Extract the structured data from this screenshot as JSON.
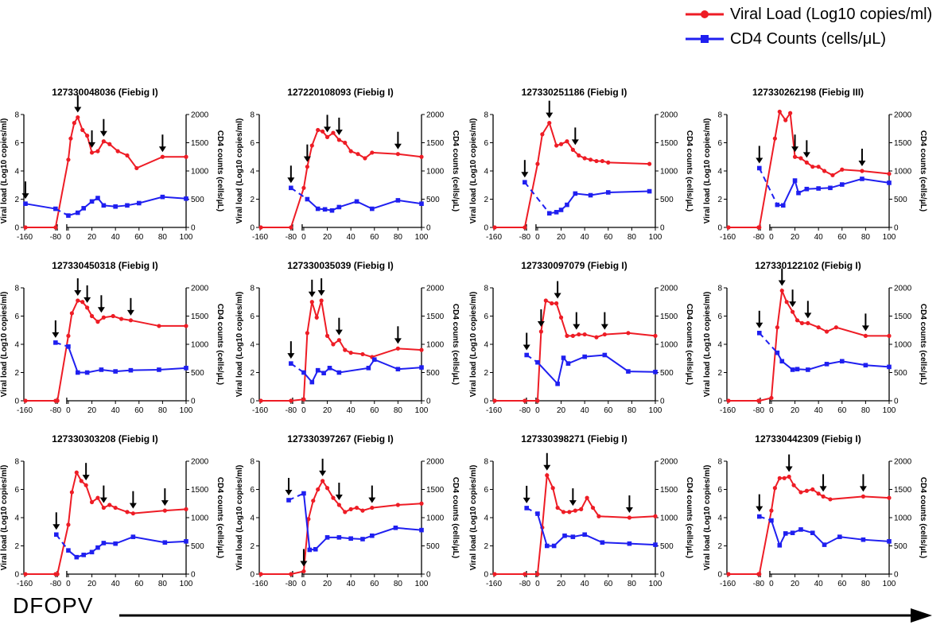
{
  "legend": {
    "viral_load_label": "Viral Load (Log10 copies/ml)",
    "viral_load_color": "#ee1c25",
    "cd4_label": "CD4 Counts (cells/μL)",
    "cd4_color": "#1f1ff0"
  },
  "footer": {
    "label": "DFOPV"
  },
  "axes": {
    "left_ylabel": "Viral load (Log10 copies/ml)",
    "right_ylabel": "CD4 counts (cells/μL)",
    "left_ylim": [
      0,
      8
    ],
    "right_ylim": [
      0,
      2000
    ],
    "left_ticks": [
      "0",
      "2",
      "4",
      "6",
      "8"
    ],
    "right_ticks": [
      "0",
      "500",
      "1000",
      "1500",
      "2000"
    ],
    "x_ticks": [
      "-160",
      "-80",
      "0",
      "20",
      "40",
      "60",
      "80",
      "100"
    ]
  },
  "chart_data": [
    {
      "type": "line",
      "title": "127330048036 (Fiebig I)",
      "series": [
        {
          "name": "Viral Load (Log10 copies/ml)",
          "axis": "left",
          "x": [
            -160,
            -80,
            0,
            2,
            5,
            8,
            12,
            16,
            20,
            25,
            30,
            35,
            42,
            50,
            58,
            80,
            100
          ],
          "values": [
            0,
            0,
            4.8,
            6.3,
            7.4,
            7.8,
            6.9,
            6.5,
            5.3,
            5.4,
            6.1,
            5.9,
            5.4,
            5.1,
            4.2,
            5.0,
            5.0
          ]
        },
        {
          "name": "CD4 Counts (cells/μL)",
          "axis": "right",
          "x": [
            -160,
            -80,
            0,
            8,
            13,
            20,
            25,
            30,
            40,
            50,
            60,
            80,
            100
          ],
          "values": [
            420,
            330,
            210,
            260,
            340,
            460,
            520,
            390,
            370,
            390,
            430,
            540,
            510
          ]
        }
      ],
      "arrows": [
        -160,
        8,
        20,
        30,
        80
      ]
    },
    {
      "type": "line",
      "title": "127220108093 (Fiebig I)",
      "series": [
        {
          "name": "Viral Load (Log10 copies/ml)",
          "axis": "left",
          "x": [
            -160,
            -80,
            0,
            3,
            7,
            12,
            16,
            20,
            25,
            30,
            35,
            40,
            46,
            52,
            58,
            80,
            100
          ],
          "values": [
            0,
            0,
            2.8,
            4.3,
            5.8,
            6.9,
            6.8,
            6.4,
            6.7,
            6.2,
            6.0,
            5.4,
            5.2,
            4.9,
            5.3,
            5.2,
            5.0
          ]
        },
        {
          "name": "CD4 Counts (cells/μL)",
          "axis": "right",
          "x": [
            -80,
            3,
            12,
            18,
            24,
            30,
            45,
            58,
            80,
            100
          ],
          "values": [
            700,
            500,
            330,
            320,
            300,
            360,
            460,
            330,
            480,
            420
          ]
        }
      ],
      "arrows": [
        -80,
        3,
        20,
        30,
        80
      ]
    },
    {
      "type": "line",
      "title": "127330251186 (Fiebig I)",
      "series": [
        {
          "name": "Viral Load (Log10 copies/ml)",
          "axis": "left",
          "x": [
            -160,
            -80,
            0,
            4,
            10,
            16,
            20,
            25,
            30,
            35,
            40,
            45,
            50,
            55,
            60,
            95
          ],
          "values": [
            0,
            0,
            4.5,
            6.6,
            7.4,
            5.8,
            5.9,
            6.1,
            5.5,
            5.1,
            4.9,
            4.8,
            4.7,
            4.7,
            4.6,
            4.5
          ]
        },
        {
          "name": "CD4 Counts (cells/μL)",
          "axis": "right",
          "x": [
            -80,
            10,
            16,
            20,
            25,
            32,
            45,
            60,
            95
          ],
          "values": [
            800,
            250,
            270,
            310,
            400,
            600,
            570,
            620,
            640
          ]
        }
      ],
      "arrows": [
        -80,
        10,
        32
      ]
    },
    {
      "type": "line",
      "title": "127330262198 (Fiebig III)",
      "series": [
        {
          "name": "Viral Load (Log10 copies/ml)",
          "axis": "left",
          "x": [
            -160,
            -80,
            -78,
            3,
            7,
            12,
            16,
            20,
            25,
            30,
            35,
            40,
            45,
            52,
            60,
            77,
            100
          ],
          "values": [
            0,
            0,
            0,
            6.3,
            8.2,
            7.6,
            8.1,
            5.0,
            4.9,
            4.6,
            4.3,
            4.3,
            4.0,
            3.7,
            4.1,
            4.0,
            3.8
          ]
        },
        {
          "name": "CD4 Counts (cells/μL)",
          "axis": "right",
          "x": [
            -78,
            5,
            10,
            20,
            23,
            30,
            40,
            50,
            60,
            77,
            100
          ],
          "values": [
            1050,
            400,
            390,
            830,
            610,
            680,
            690,
            700,
            760,
            860,
            790
          ]
        }
      ],
      "arrows": [
        -78,
        20,
        30,
        77
      ]
    },
    {
      "type": "line",
      "title": "127330450318 (Fiebig I)",
      "series": [
        {
          "name": "Viral Load (Log10 copies/ml)",
          "axis": "left",
          "x": [
            -160,
            -80,
            -75,
            0,
            3,
            8,
            12,
            16,
            20,
            25,
            30,
            38,
            45,
            53,
            77,
            100
          ],
          "values": [
            0,
            0,
            0,
            4.6,
            6.2,
            7.1,
            7.0,
            6.6,
            6.0,
            5.6,
            5.9,
            6.0,
            5.8,
            5.7,
            5.3,
            5.3
          ]
        },
        {
          "name": "CD4 Counts (cells/μL)",
          "axis": "right",
          "x": [
            -80,
            0,
            8,
            16,
            28,
            40,
            53,
            77,
            100
          ],
          "values": [
            1030,
            960,
            500,
            500,
            550,
            520,
            540,
            550,
            580
          ]
        }
      ],
      "arrows": [
        -80,
        8,
        16,
        28,
        53
      ]
    },
    {
      "type": "line",
      "title": "127330035039 (Fiebig I)",
      "series": [
        {
          "name": "Viral Load (Log10 copies/ml)",
          "axis": "left",
          "x": [
            -160,
            -80,
            0,
            3,
            7,
            11,
            15,
            20,
            25,
            30,
            35,
            40,
            50,
            58,
            80,
            100
          ],
          "values": [
            0,
            0,
            0.1,
            4.8,
            7.0,
            5.9,
            7.1,
            4.6,
            4.0,
            4.3,
            3.6,
            3.4,
            3.3,
            3.1,
            3.7,
            3.6
          ]
        },
        {
          "name": "CD4 Counts (cells/μL)",
          "axis": "right",
          "x": [
            -80,
            0,
            7,
            12,
            17,
            22,
            30,
            55,
            60,
            80,
            100
          ],
          "values": [
            660,
            500,
            330,
            540,
            490,
            580,
            500,
            580,
            730,
            560,
            590
          ]
        }
      ],
      "arrows": [
        -80,
        7,
        15,
        30,
        80
      ]
    },
    {
      "type": "line",
      "title": "127330097079 (Fiebig I)",
      "series": [
        {
          "name": "Viral Load (Log10 copies/ml)",
          "axis": "left",
          "x": [
            -160,
            -80,
            0,
            3,
            7,
            12,
            16,
            20,
            25,
            30,
            35,
            40,
            50,
            57,
            77,
            100
          ],
          "values": [
            0,
            0,
            0,
            4.9,
            7.1,
            6.9,
            6.9,
            5.9,
            4.6,
            4.6,
            4.7,
            4.7,
            4.5,
            4.7,
            4.8,
            4.6
          ]
        },
        {
          "name": "CD4 Counts (cells/μL)",
          "axis": "right",
          "x": [
            -75,
            0,
            17,
            22,
            26,
            40,
            57,
            77,
            100
          ],
          "values": [
            810,
            680,
            300,
            760,
            660,
            780,
            810,
            520,
            510
          ]
        }
      ],
      "arrows": [
        -75,
        3,
        17,
        33,
        57
      ]
    },
    {
      "type": "line",
      "title": "127330122102 (Fiebig I)",
      "series": [
        {
          "name": "Viral Load (Log10 copies/ml)",
          "axis": "left",
          "x": [
            -160,
            -80,
            -78,
            0,
            5,
            9,
            13,
            18,
            22,
            26,
            31,
            40,
            47,
            55,
            80,
            100
          ],
          "values": [
            0,
            0,
            0,
            0.2,
            5.2,
            7.8,
            7.0,
            6.3,
            5.7,
            5.5,
            5.5,
            5.2,
            4.9,
            5.2,
            4.6,
            4.6
          ]
        },
        {
          "name": "CD4 Counts (cells/μL)",
          "axis": "right",
          "x": [
            -78,
            5,
            9,
            18,
            22,
            31,
            47,
            60,
            80,
            100
          ],
          "values": [
            1200,
            850,
            700,
            550,
            560,
            550,
            650,
            700,
            630,
            600
          ]
        }
      ],
      "arrows": [
        -78,
        9,
        18,
        31,
        80
      ]
    },
    {
      "type": "line",
      "title": "127330303208 (Fiebig I)",
      "series": [
        {
          "name": "Viral Load (Log10 copies/ml)",
          "axis": "left",
          "x": [
            -160,
            -80,
            -75,
            0,
            3,
            7,
            11,
            15,
            20,
            25,
            30,
            35,
            40,
            50,
            55,
            82,
            100
          ],
          "values": [
            0,
            0,
            0,
            3.5,
            5.8,
            7.2,
            6.6,
            6.3,
            5.1,
            5.4,
            4.7,
            4.9,
            4.7,
            4.4,
            4.3,
            4.5,
            4.6
          ]
        },
        {
          "name": "CD4 Counts (cells/μL)",
          "axis": "right",
          "x": [
            -78,
            0,
            7,
            13,
            20,
            25,
            30,
            40,
            55,
            82,
            100
          ],
          "values": [
            700,
            420,
            300,
            340,
            390,
            470,
            550,
            540,
            660,
            560,
            580
          ]
        }
      ],
      "arrows": [
        -78,
        15,
        30,
        55,
        82
      ]
    },
    {
      "type": "line",
      "title": "127330397267 (Fiebig I)",
      "series": [
        {
          "name": "Viral Load (Log10 copies/ml)",
          "axis": "left",
          "x": [
            -160,
            -80,
            0,
            4,
            8,
            12,
            16,
            20,
            25,
            30,
            35,
            40,
            45,
            50,
            58,
            80,
            100
          ],
          "values": [
            0,
            0,
            0.2,
            3.9,
            5.2,
            6.0,
            6.6,
            6.1,
            5.4,
            4.9,
            4.4,
            4.6,
            4.7,
            4.5,
            4.7,
            4.9,
            5.0
          ]
        },
        {
          "name": "CD4 Counts (cells/μL)",
          "axis": "right",
          "x": [
            -86,
            0,
            5,
            10,
            20,
            30,
            40,
            50,
            58,
            78,
            100
          ],
          "values": [
            1310,
            1430,
            430,
            440,
            650,
            650,
            630,
            620,
            680,
            820,
            780
          ]
        }
      ],
      "arrows": [
        -86,
        0,
        16,
        30,
        58
      ]
    },
    {
      "type": "line",
      "title": "127330398271 (Fiebig I)",
      "series": [
        {
          "name": "Viral Load (Log10 copies/ml)",
          "axis": "left",
          "x": [
            -160,
            -80,
            0,
            4,
            8,
            13,
            17,
            22,
            27,
            32,
            37,
            42,
            47,
            52,
            78,
            100
          ],
          "values": [
            0,
            0,
            0,
            3.3,
            7.0,
            6.1,
            4.7,
            4.4,
            4.4,
            4.5,
            4.6,
            5.4,
            4.7,
            4.1,
            4.0,
            4.1
          ]
        },
        {
          "name": "CD4 Counts (cells/μL)",
          "axis": "right",
          "x": [
            -75,
            0,
            8,
            14,
            23,
            30,
            40,
            55,
            78,
            100
          ],
          "values": [
            1170,
            1070,
            500,
            500,
            680,
            660,
            700,
            560,
            540,
            520
          ]
        }
      ],
      "arrows": [
        -75,
        8,
        30,
        78
      ]
    },
    {
      "type": "line",
      "title": "127330442309 (Fiebig I)",
      "series": [
        {
          "name": "Viral Load (Log10 copies/ml)",
          "axis": "left",
          "x": [
            -160,
            -80,
            -78,
            0,
            3,
            7,
            11,
            15,
            19,
            25,
            30,
            35,
            40,
            44,
            50,
            78,
            100
          ],
          "values": [
            0,
            0,
            0,
            4.5,
            6.1,
            6.8,
            6.8,
            6.9,
            6.3,
            5.8,
            5.9,
            6.0,
            5.7,
            5.5,
            5.3,
            5.5,
            5.4
          ]
        },
        {
          "name": "CD4 Counts (cells/μL)",
          "axis": "right",
          "x": [
            -78,
            0,
            7,
            12,
            18,
            25,
            35,
            45,
            58,
            78,
            100
          ],
          "values": [
            1020,
            950,
            510,
            720,
            730,
            790,
            730,
            520,
            660,
            610,
            580
          ]
        }
      ],
      "arrows": [
        -78,
        15,
        44,
        78
      ]
    }
  ]
}
